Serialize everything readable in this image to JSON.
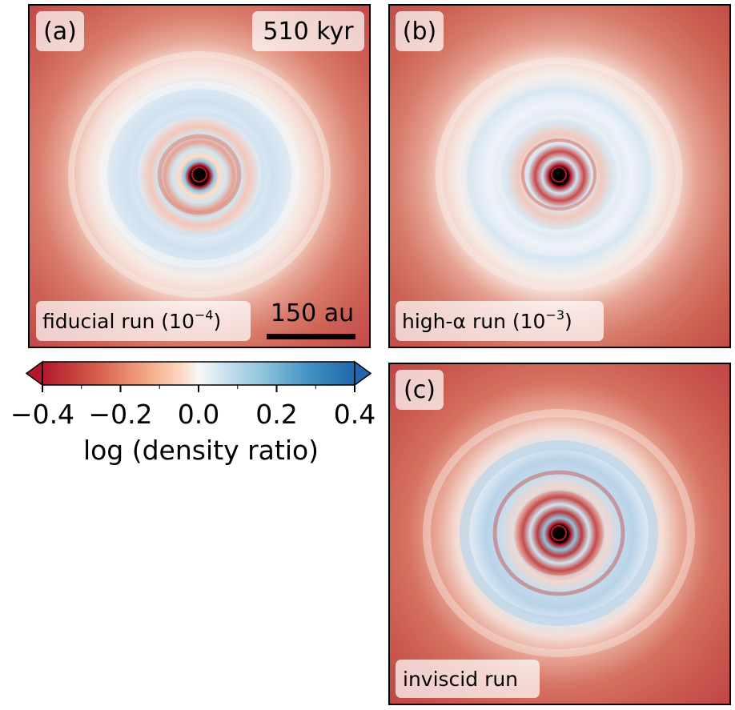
{
  "colors": {
    "red_dark": "#b2182b",
    "red_mid": "#d6604d",
    "red_light": "#f4a582",
    "pink": "#fddbc7",
    "white": "#f7f7f7",
    "blue_light": "#d1e5f0",
    "blue_mid": "#92c5de",
    "blue_dark": "#2166ac",
    "star": "#000000"
  },
  "chart_data": {
    "type": "heatmap",
    "colorbar": {
      "label": "log (density ratio)",
      "min": -0.4,
      "max": 0.4,
      "ticks": [
        -0.4,
        -0.2,
        0.0,
        0.2,
        0.4
      ],
      "tick_labels": [
        "−0.4",
        "−0.2",
        "0.0",
        "0.2",
        "0.4"
      ],
      "extend": "both",
      "colormap": "RdBu"
    },
    "panels": [
      {
        "id": "a",
        "label": "(a)",
        "caption": "fiducial run (10",
        "caption_exp": "−4",
        "caption_close": ")",
        "time": "510 kyr",
        "scalebar_label": "150 au"
      },
      {
        "id": "b",
        "label": "(b)",
        "caption": "high-α run (10",
        "caption_exp": "−3",
        "caption_close": ")"
      },
      {
        "id": "c",
        "label": "(c)",
        "caption": "inviscid run",
        "caption_exp": "",
        "caption_close": ""
      }
    ]
  }
}
